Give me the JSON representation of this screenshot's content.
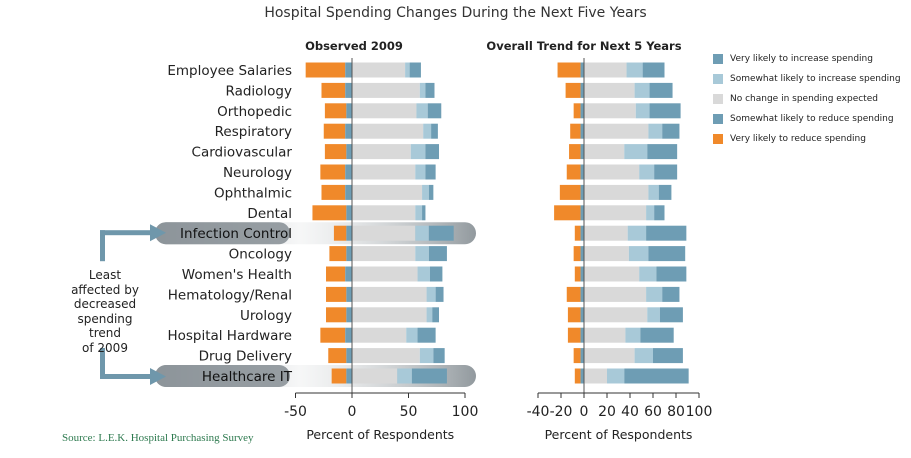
{
  "page_title": "Hospital Spending Changes During the Next Five Years",
  "source": "Source: L.E.K. Hospital Purchasing Survey",
  "annotation": [
    "Least",
    "affected by",
    "decreased",
    "spending trend",
    "of 2009"
  ],
  "colors": {
    "very_reduce": "#f0892a",
    "somewhat_reduce": "#6e9db4",
    "no_change": "#d9d9d9",
    "somewhat_increase": "#a8c9d8",
    "very_increase": "#6e9db4",
    "arrow": "#6f97ab",
    "highlight": "#8c9499"
  },
  "legend": [
    {
      "label": "Very likely to increase spending",
      "color": "#6e9db4"
    },
    {
      "label": "Somewhat likely to increase spending",
      "color": "#a8c9d8"
    },
    {
      "label": "No change in spending expected",
      "color": "#d9d9d9"
    },
    {
      "label": "Somewhat likely to reduce spending",
      "color": "#6e9db4"
    },
    {
      "label": "Very likely to reduce spending",
      "color": "#f0892a"
    }
  ],
  "chart_data": [
    {
      "type": "bar",
      "orientation": "horizontal",
      "stacked": "diverging",
      "title": "Observed 2009",
      "xlabel": "Percent of Respondents",
      "xlim": [
        -50,
        100
      ],
      "xticks": [
        -50,
        0,
        50,
        100
      ],
      "categories": [
        "Employee Salaries",
        "Radiology",
        "Orthopedic",
        "Respiratory",
        "Cardiovascular",
        "Neurology",
        "Ophthalmic",
        "Dental",
        "Infection Control",
        "Oncology",
        "Women's Health",
        "Hematology/Renal",
        "Urology",
        "Hospital Hardware",
        "Drug Delivery",
        "Healthcare IT"
      ],
      "highlighted": [
        "Infection Control",
        "Healthcare IT"
      ],
      "series": [
        {
          "name": "Very likely to reduce spending",
          "values": [
            35,
            21,
            19,
            19,
            19,
            22,
            21,
            30,
            11,
            15,
            17,
            18,
            18,
            22,
            16,
            13
          ]
        },
        {
          "name": "Somewhat likely to reduce spending",
          "values": [
            6,
            6,
            5,
            6,
            5,
            6,
            6,
            5,
            5,
            5,
            6,
            5,
            5,
            6,
            5,
            5
          ]
        },
        {
          "name": "No change in spending expected",
          "values": [
            47,
            60,
            57,
            63,
            52,
            56,
            62,
            56,
            56,
            56,
            58,
            66,
            66,
            48,
            60,
            40
          ]
        },
        {
          "name": "Somewhat likely to increase spending",
          "values": [
            4,
            5,
            10,
            7,
            13,
            9,
            6,
            6,
            12,
            12,
            11,
            8,
            5,
            10,
            12,
            13
          ]
        },
        {
          "name": "Very likely to increase spending",
          "values": [
            10,
            8,
            12,
            6,
            12,
            9,
            4,
            3,
            22,
            16,
            11,
            7,
            6,
            16,
            10,
            31
          ]
        }
      ]
    },
    {
      "type": "bar",
      "orientation": "horizontal",
      "stacked": "diverging",
      "title": "Overall Trend for Next 5 Years",
      "xlabel": "Percent of Respondents",
      "xlim": [
        -40,
        100
      ],
      "xticks": [
        -40,
        -20,
        0,
        20,
        40,
        60,
        80,
        100
      ],
      "categories": [
        "Employee Salaries",
        "Radiology",
        "Orthopedic",
        "Respiratory",
        "Cardiovascular",
        "Neurology",
        "Ophthalmic",
        "Dental",
        "Infection Control",
        "Oncology",
        "Women's Health",
        "Hematology/Renal",
        "Urology",
        "Hospital Hardware",
        "Drug Delivery",
        "Healthcare IT"
      ],
      "series": [
        {
          "name": "Very likely to reduce spending",
          "values": [
            20,
            13,
            6,
            9,
            10,
            12,
            18,
            23,
            5,
            6,
            5,
            12,
            11,
            11,
            6,
            5
          ]
        },
        {
          "name": "Somewhat likely to reduce spending",
          "values": [
            3,
            3,
            3,
            3,
            3,
            3,
            3,
            3,
            3,
            3,
            3,
            3,
            3,
            3,
            3,
            3
          ]
        },
        {
          "name": "No change in spending expected",
          "values": [
            37,
            44,
            45,
            56,
            35,
            48,
            56,
            54,
            38,
            39,
            48,
            54,
            55,
            36,
            44,
            20
          ]
        },
        {
          "name": "Somewhat likely to increase spending",
          "values": [
            14,
            13,
            12,
            12,
            20,
            13,
            9,
            7,
            16,
            17,
            15,
            14,
            11,
            13,
            16,
            15
          ]
        },
        {
          "name": "Very likely to increase spending",
          "values": [
            19,
            20,
            27,
            15,
            26,
            20,
            11,
            9,
            35,
            32,
            26,
            15,
            20,
            29,
            26,
            56
          ]
        }
      ]
    }
  ]
}
